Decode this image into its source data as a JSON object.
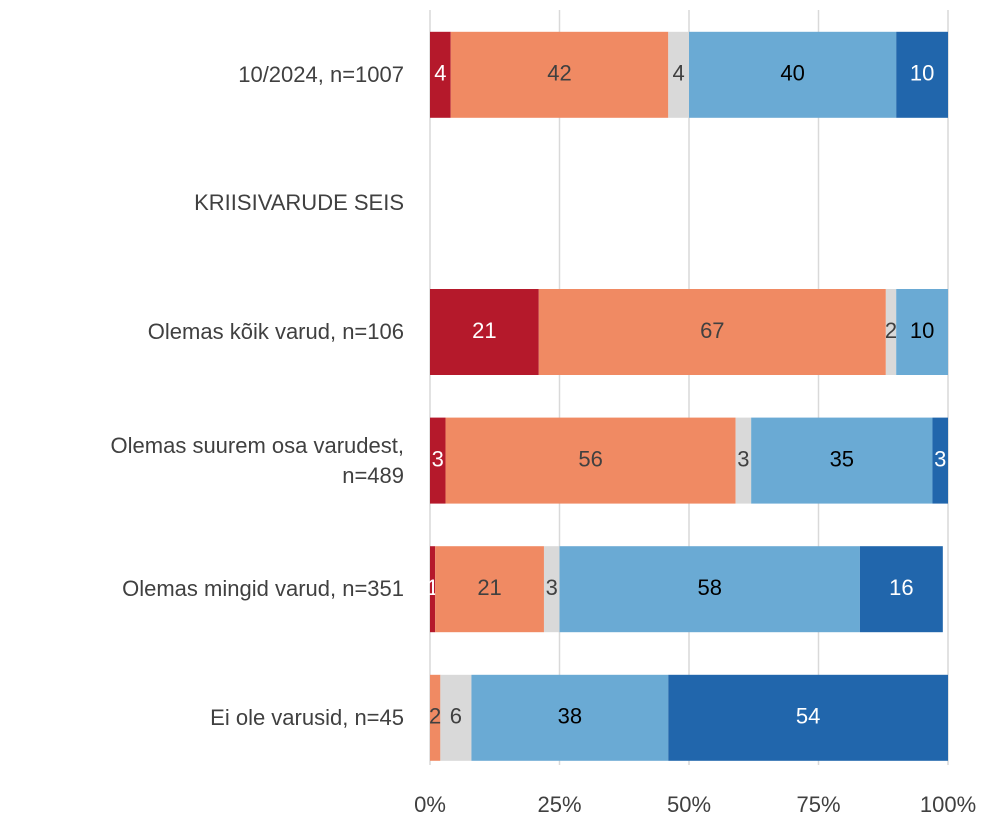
{
  "chart_data": {
    "type": "stacked-bar-horizontal",
    "categories": [
      "10/2024, n=1007",
      "KRIISIVARUDE SEIS",
      "Olemas kõik varud, n=106",
      "Olemas suurem osa varudest,\nn=489",
      "Olemas mingid varud, n=351",
      "Ei ole varusid, n=45"
    ],
    "series": [
      {
        "color": "#b5192b",
        "label_color": "#ffffff",
        "values": [
          4,
          null,
          21,
          3,
          1,
          null
        ]
      },
      {
        "color": "#f08a63",
        "label_color": "#404040",
        "values": [
          42,
          null,
          67,
          56,
          21,
          2
        ]
      },
      {
        "color": "#d9d9d9",
        "label_color": "#404040",
        "values": [
          4,
          null,
          2,
          3,
          3,
          6
        ]
      },
      {
        "color": "#6aaad4",
        "label_color": "#000000",
        "values": [
          40,
          null,
          10,
          35,
          58,
          38
        ]
      },
      {
        "color": "#2166ac",
        "label_color": "#ffffff",
        "values": [
          10,
          null,
          null,
          3,
          16,
          54
        ]
      }
    ],
    "xlim": [
      0,
      100
    ],
    "xticks": [
      {
        "value": 0,
        "label": "0%"
      },
      {
        "value": 25,
        "label": "25%"
      },
      {
        "value": 50,
        "label": "50%"
      },
      {
        "value": 75,
        "label": "75%"
      },
      {
        "value": 100,
        "label": "100%"
      }
    ],
    "grid": true
  }
}
